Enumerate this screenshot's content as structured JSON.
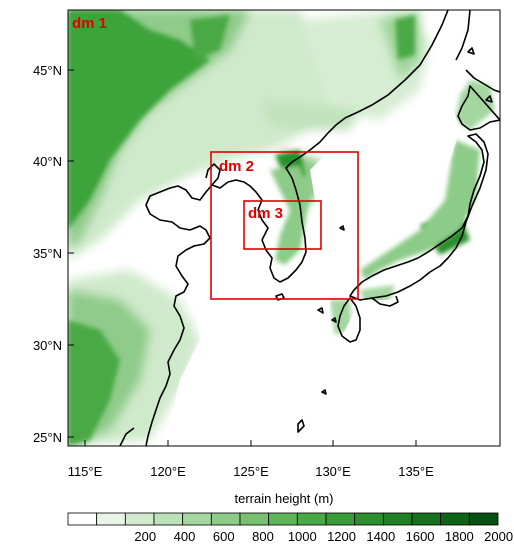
{
  "map": {
    "lat_labels": [
      "45°N",
      "40°N",
      "35°N",
      "30°N",
      "25°N"
    ],
    "lon_labels": [
      "115°E",
      "120°E",
      "125°E",
      "130°E",
      "135°E"
    ],
    "domains": [
      {
        "label": "dm 1"
      },
      {
        "label": "dm 2"
      },
      {
        "label": "dm 3"
      }
    ],
    "domain_color": "#e00000"
  },
  "colorbar": {
    "title": "terrain height (m)",
    "labels": [
      "200",
      "400",
      "600",
      "800",
      "1000",
      "1200",
      "1400",
      "1600",
      "1800",
      "2000"
    ],
    "colors": [
      "#ffffff",
      "#e8f5e6",
      "#d2ebcf",
      "#bbe1b8",
      "#a4d6a0",
      "#8dcb88",
      "#76c070",
      "#5fb559",
      "#49a944",
      "#379d36",
      "#2b8f2c",
      "#1f8124",
      "#16721d",
      "#0e6317",
      "#075212"
    ]
  }
}
